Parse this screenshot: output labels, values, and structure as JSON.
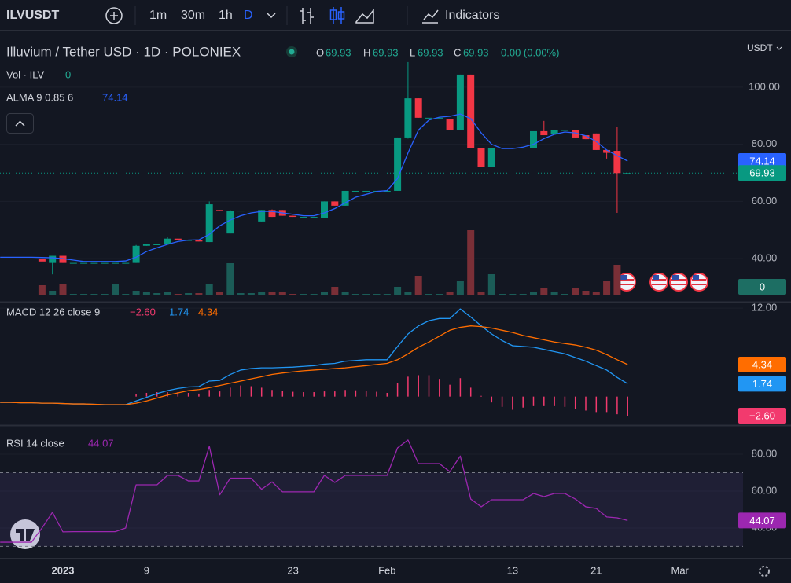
{
  "toolbar": {
    "symbol": "ILVUSDT",
    "intervals": [
      "1m",
      "30m",
      "1h",
      "D"
    ],
    "indicators_button": "Indicators"
  },
  "time_axis": {
    "categories": [
      null,
      null,
      null,
      null,
      null,
      null,
      "2023",
      null,
      null,
      null,
      null,
      null,
      null,
      null,
      "9",
      null,
      null,
      null,
      null,
      null,
      null,
      null,
      null,
      null,
      null,
      null,
      null,
      null,
      "23",
      null,
      null,
      null,
      null,
      null,
      null,
      null,
      null,
      "Feb",
      null,
      null,
      null,
      null,
      null,
      null,
      null,
      null,
      null,
      null,
      null,
      "13",
      null,
      null,
      null,
      null,
      null,
      null,
      null,
      "21",
      null,
      null,
      null,
      null,
      null,
      null,
      null,
      "Mar",
      null,
      null,
      null,
      null,
      null
    ]
  },
  "chart_data": [
    {
      "type": "candlestick",
      "title": "Illuvium / Tether USD · 1D · POLONIEX",
      "ohlc_labels": [
        "O",
        "H",
        "L",
        "C"
      ],
      "change": "0.00 (0.00%)",
      "currency": "USDT",
      "up_color": "#089981",
      "down_color": "#f23645",
      "open": [
        null,
        null,
        null,
        null,
        40,
        38.5,
        41,
        38.5,
        38.5,
        38.5,
        38.5,
        38.5,
        38.5,
        38.5,
        44.5,
        45,
        45,
        47,
        46.5,
        46.5,
        45.8,
        57,
        48.8,
        56.8,
        56.8,
        53,
        57,
        57,
        55,
        54.6,
        54.6,
        54.3,
        60,
        58.5,
        63.7,
        63.7,
        63.7,
        63.7,
        63.7,
        82.4,
        96.1,
        89.3,
        89.3,
        88.7,
        85.1,
        104.4,
        78.8,
        72,
        78.8,
        78.8,
        78.8,
        78.8,
        84.6,
        83.5,
        85,
        85.1,
        83.2,
        83.8,
        78,
        77.7,
        69.93,
        null,
        null,
        null,
        null,
        null,
        null,
        null,
        null,
        null,
        null
      ],
      "high": [
        null,
        null,
        null,
        null,
        40,
        41,
        41,
        38.5,
        38.5,
        38.5,
        38.5,
        38.5,
        38.5,
        44.8,
        45,
        45,
        47.5,
        47,
        46.5,
        46.5,
        60,
        57,
        57,
        56.8,
        56.8,
        57,
        57.2,
        57,
        55,
        54.6,
        54.6,
        60,
        60,
        63.7,
        63.7,
        63.7,
        63.7,
        63.7,
        82.4,
        108.8,
        96.1,
        89.3,
        89.3,
        88.7,
        104.4,
        104.4,
        78.8,
        78.8,
        78.8,
        78.8,
        78.8,
        84.6,
        88.2,
        85.1,
        85,
        85.1,
        83.2,
        83.8,
        78,
        86,
        69.93,
        null,
        null,
        null,
        null,
        null,
        null,
        null,
        null,
        null,
        null
      ],
      "low": [
        null,
        null,
        null,
        null,
        39,
        34.5,
        38.5,
        38.5,
        38.5,
        38.5,
        38.5,
        38.5,
        38.5,
        38.5,
        44.5,
        45,
        45,
        46.5,
        46.5,
        46,
        45.8,
        56.8,
        48.8,
        56.8,
        56.8,
        53,
        54.6,
        55,
        54.6,
        54.6,
        54.6,
        54.3,
        58.5,
        58.5,
        63.7,
        63.7,
        63.7,
        63.7,
        63.7,
        82,
        89.3,
        89.3,
        89.3,
        85.1,
        85.1,
        78.8,
        72,
        72,
        78.8,
        78.8,
        78.8,
        78.8,
        83.2,
        83.5,
        85,
        82.4,
        81.8,
        78,
        75,
        56,
        69.93,
        null,
        null,
        null,
        null,
        null,
        null,
        null,
        null,
        null,
        null
      ],
      "close": [
        null,
        null,
        null,
        null,
        39,
        41,
        38.5,
        38.5,
        38.5,
        38.5,
        38.5,
        38.5,
        38.5,
        44.5,
        45,
        45,
        47,
        46.5,
        46.5,
        46,
        59,
        56.8,
        56.8,
        56.8,
        56.8,
        57,
        54.6,
        55,
        54.6,
        54.6,
        54.6,
        60,
        58.5,
        63.7,
        63.7,
        63.7,
        63.7,
        63.7,
        82.4,
        96.1,
        89.3,
        89.3,
        89.3,
        85.1,
        104.4,
        78.8,
        72,
        78.8,
        78.8,
        78.8,
        78.8,
        84.6,
        83.2,
        85.1,
        85,
        82.4,
        81.8,
        78,
        77,
        69.93,
        69.93,
        null,
        null,
        null,
        null,
        null,
        null,
        null,
        null,
        null,
        null
      ],
      "volume_name": "Vol · ILV",
      "volume_up_color": "#1b5c57",
      "volume_down_color": "#7a2f37",
      "volume": [
        null,
        null,
        null,
        null,
        12,
        5,
        13,
        1,
        1,
        1,
        1,
        13,
        1,
        5,
        3,
        2,
        3,
        1,
        2,
        2,
        13,
        3,
        40,
        2,
        2,
        3,
        4,
        3,
        1,
        1,
        1,
        4,
        10,
        3,
        1,
        1,
        1,
        1,
        10,
        3,
        24,
        1,
        1,
        3,
        17,
        82,
        4,
        26,
        1,
        1,
        1,
        3,
        8,
        4,
        1,
        8,
        5,
        3,
        17,
        38,
        0,
        null,
        null,
        null,
        null,
        null,
        null,
        null,
        null,
        null,
        null
      ],
      "overlays": [
        {
          "name": "ALMA 9 0.85 6",
          "color": "#2962ff",
          "values": [
            40.5,
            40.5,
            40.5,
            40.5,
            40.4,
            40.3,
            40,
            39.5,
            39,
            39,
            39,
            39,
            39.2,
            40.5,
            42.5,
            43.8,
            45,
            46,
            46.5,
            46.6,
            48.5,
            51.5,
            53.5,
            55,
            56,
            56.5,
            56.5,
            56,
            55.5,
            55,
            55,
            56,
            57.5,
            59.5,
            61.5,
            62.5,
            63.5,
            63.8,
            68,
            77,
            85,
            88.5,
            89.5,
            89.8,
            90.6,
            89,
            84,
            80,
            78.5,
            78.5,
            79,
            80,
            82,
            83.5,
            84.3,
            84,
            83,
            81,
            78,
            76,
            74.14,
            null,
            null,
            null,
            null,
            null,
            null,
            null,
            null,
            null,
            null
          ]
        }
      ],
      "ylim": [
        25.2,
        119.5
      ],
      "yticks": [
        {
          "value": 40,
          "label": "40.00"
        },
        {
          "value": 60,
          "label": "60.00"
        },
        {
          "value": 80,
          "label": "80.00"
        },
        {
          "value": 100,
          "label": "100.00"
        }
      ],
      "grid": true
    },
    {
      "type": "macd",
      "title": "MACD 12 26 close 9",
      "series": [
        {
          "style": "histogram",
          "color": "#f23a6e",
          "values": [
            0,
            0,
            0,
            0,
            0,
            0,
            0,
            0,
            0,
            0,
            0,
            0,
            0,
            0.3,
            0.5,
            0.6,
            0.6,
            0.6,
            0.5,
            0.4,
            0.9,
            0.7,
            1.2,
            1.5,
            1.4,
            1.2,
            0.9,
            0.75,
            0.65,
            0.6,
            0.6,
            0.7,
            0.7,
            0.9,
            0.85,
            0.8,
            0.65,
            0.5,
            1.8,
            2.7,
            2.9,
            2.9,
            2.4,
            1.6,
            2.5,
            1.2,
            0.1,
            -0.8,
            -1.4,
            -1.8,
            -1.5,
            -1.3,
            -1.3,
            -1.3,
            -1.4,
            -1.7,
            -1.9,
            -2.1,
            -2.1,
            -2.4,
            -2.6,
            null,
            null,
            null,
            null,
            null,
            null,
            null,
            null,
            null,
            null
          ],
          "value_labels": [
            null,
            null,
            null,
            null,
            null,
            null,
            null,
            null,
            null,
            null,
            null,
            null,
            null,
            null,
            null,
            null,
            null,
            null,
            null,
            null,
            null,
            null,
            null,
            null,
            null,
            null,
            null,
            null,
            null,
            null,
            null,
            null,
            null,
            null,
            null,
            null,
            null,
            null,
            null,
            null,
            null,
            null,
            null,
            null,
            null,
            null,
            null,
            null,
            null,
            null,
            null,
            null,
            null,
            null,
            null,
            null,
            null,
            null,
            null,
            null,
            "−2.60",
            null,
            null,
            null,
            null,
            null,
            null,
            null,
            null,
            null,
            null
          ]
        },
        {
          "style": "line",
          "color": "#2196f3",
          "values": [
            -0.8,
            -0.8,
            -0.85,
            -0.85,
            -0.9,
            -0.9,
            -0.95,
            -1,
            -1,
            -1.05,
            -1.1,
            -1.1,
            -1.1,
            -0.6,
            -0.1,
            0.4,
            0.8,
            1.1,
            1.3,
            1.35,
            2.1,
            2.2,
            3,
            3.6,
            3.8,
            3.9,
            3.9,
            3.95,
            4,
            4.1,
            4.2,
            4.4,
            4.5,
            4.8,
            4.9,
            5,
            5,
            5,
            6.8,
            8.5,
            9.6,
            10.3,
            10.6,
            10.6,
            11.9,
            10.8,
            9.6,
            8.5,
            7.6,
            6.9,
            6.8,
            6.7,
            6.4,
            6.1,
            5.8,
            5.3,
            4.8,
            4.2,
            3.6,
            2.6,
            1.74,
            null,
            null,
            null,
            null,
            null,
            null,
            null,
            null,
            null,
            null
          ]
        },
        {
          "style": "line",
          "color": "#ff6d00",
          "values": [
            -0.8,
            -0.8,
            -0.85,
            -0.85,
            -0.9,
            -0.9,
            -0.95,
            -1,
            -1,
            -1.05,
            -1.1,
            -1.1,
            -1.1,
            -0.9,
            -0.6,
            -0.2,
            0.2,
            0.5,
            0.8,
            0.95,
            1.2,
            1.5,
            1.8,
            2.1,
            2.4,
            2.7,
            3,
            3.2,
            3.35,
            3.5,
            3.6,
            3.7,
            3.8,
            3.9,
            4.05,
            4.2,
            4.35,
            4.5,
            5,
            5.8,
            6.7,
            7.4,
            8.2,
            9,
            9.4,
            9.6,
            9.5,
            9.3,
            9,
            8.7,
            8.3,
            8,
            7.7,
            7.4,
            7.2,
            7,
            6.7,
            6.3,
            5.7,
            5,
            4.34,
            null,
            null,
            null,
            null,
            null,
            null,
            null,
            null,
            null,
            null
          ]
        }
      ],
      "ylim": [
        -3.77,
        12.66
      ],
      "yticks": [
        {
          "value": 12,
          "label": "12.00"
        }
      ],
      "grid": true
    },
    {
      "type": "rsi",
      "title": "RSI 14 close",
      "series": [
        {
          "style": "line",
          "color": "#9c27b0",
          "values": [
            32.3,
            32.3,
            32.3,
            32.3,
            40,
            48.5,
            37.9,
            38,
            38,
            38,
            38,
            38,
            40,
            63.4,
            63.4,
            63.4,
            68.5,
            68.5,
            65.5,
            65.5,
            84.3,
            58,
            67,
            67,
            67,
            61,
            65,
            59.6,
            59.6,
            59.6,
            59.6,
            68.5,
            64.7,
            68.5,
            68.5,
            68.5,
            68.5,
            68.5,
            83.4,
            87.7,
            74.9,
            74.9,
            74.9,
            70.5,
            79,
            55.7,
            51.5,
            55.3,
            55.3,
            55.3,
            55.3,
            58.7,
            57,
            58.7,
            58.7,
            55.7,
            51.5,
            50.6,
            46,
            45.5,
            44.07,
            null,
            null,
            null,
            null,
            null,
            null,
            null,
            null,
            null,
            null
          ]
        }
      ],
      "bands": [
        30,
        70
      ],
      "band_color": "#7e57c2",
      "ylim": [
        23.8,
        94.9
      ],
      "yticks": [
        {
          "value": 40,
          "label": "40.00"
        },
        {
          "value": 60,
          "label": "60.00"
        },
        {
          "value": 80,
          "label": "80.00"
        }
      ],
      "grid": true
    }
  ]
}
